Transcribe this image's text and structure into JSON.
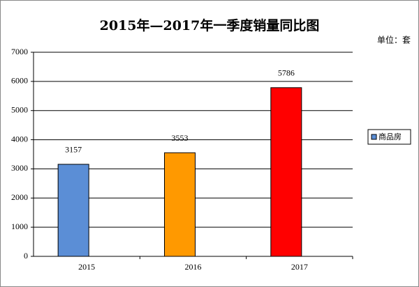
{
  "chart_data": {
    "type": "bar",
    "title": "2015年—2017年一季度销量同比图",
    "unit_label": "单位：套",
    "categories": [
      "2015",
      "2016",
      "2017"
    ],
    "series": [
      {
        "name": "商品房",
        "color": "#5b8ed6",
        "values": [
          3157,
          3553,
          5786
        ]
      }
    ],
    "bar_colors": [
      "#5b8ed6",
      "#ff9900",
      "#ff0000"
    ],
    "ylim": [
      0,
      7000
    ],
    "yticks": [
      0,
      1000,
      2000,
      3000,
      4000,
      5000,
      6000,
      7000
    ],
    "grid": true,
    "legend": "right"
  }
}
